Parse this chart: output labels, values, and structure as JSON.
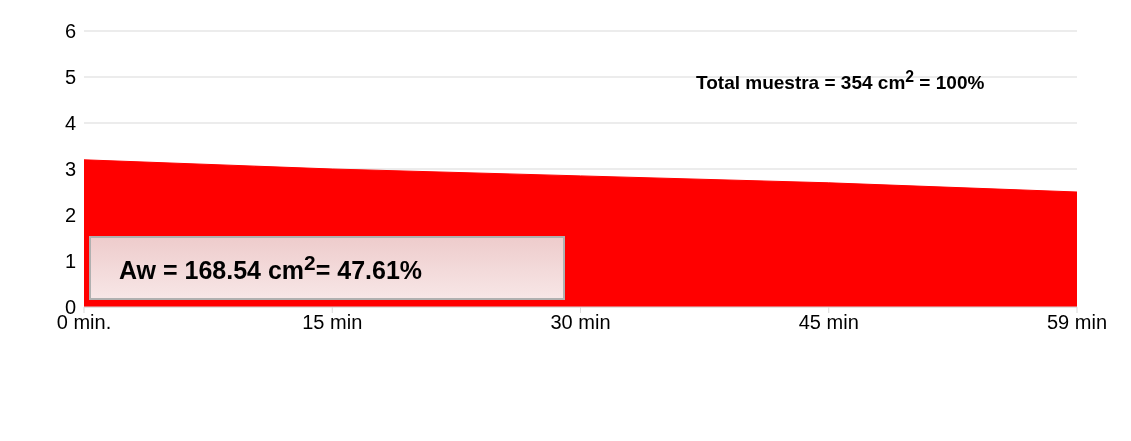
{
  "chart_data": {
    "type": "area",
    "categories": [
      "0 min.",
      "15 min",
      "30 min",
      "45 min",
      "59 min"
    ],
    "values": [
      3.2,
      3.0,
      2.85,
      2.7,
      2.5
    ],
    "color": "#ff0000",
    "ylim": [
      0,
      6
    ],
    "yticks": [
      0,
      1,
      2,
      3,
      4,
      5,
      6
    ],
    "grid": "y",
    "annotations": [
      "Total muestra = 354 cm$^{2}$ = 100%",
      "Aw = 168.54 cm$^{2}$= 47.61%"
    ]
  }
}
